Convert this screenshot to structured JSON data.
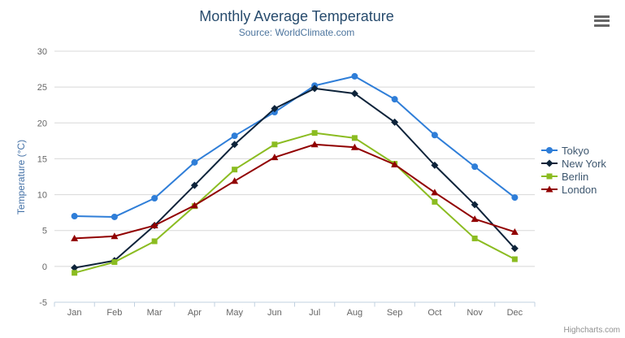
{
  "header": {
    "title": "Monthly Average Temperature",
    "subtitle": "Source: WorldClimate.com"
  },
  "credits": "Highcharts.com",
  "chart_data": {
    "type": "line",
    "title": "Monthly Average Temperature",
    "subtitle": "Source: WorldClimate.com",
    "xlabel": "",
    "ylabel": "Temperature (°C)",
    "categories": [
      "Jan",
      "Feb",
      "Mar",
      "Apr",
      "May",
      "Jun",
      "Jul",
      "Aug",
      "Sep",
      "Oct",
      "Nov",
      "Dec"
    ],
    "ylim": [
      -5,
      30
    ],
    "ytick_step": 5,
    "grid": true,
    "legend_position": "right",
    "series": [
      {
        "name": "Tokyo",
        "color": "#2f7ed8",
        "marker": "circle",
        "values": [
          7.0,
          6.9,
          9.5,
          14.5,
          18.2,
          21.5,
          25.2,
          26.5,
          23.3,
          18.3,
          13.9,
          9.6
        ]
      },
      {
        "name": "New York",
        "color": "#0d233a",
        "marker": "diamond",
        "values": [
          -0.2,
          0.8,
          5.7,
          11.3,
          17.0,
          22.0,
          24.8,
          24.1,
          20.1,
          14.1,
          8.6,
          2.5
        ]
      },
      {
        "name": "Berlin",
        "color": "#8bbc21",
        "marker": "square",
        "values": [
          -0.9,
          0.6,
          3.5,
          8.4,
          13.5,
          17.0,
          18.6,
          17.9,
          14.3,
          9.0,
          3.9,
          1.0
        ]
      },
      {
        "name": "London",
        "color": "#910000",
        "marker": "triangle",
        "values": [
          3.9,
          4.2,
          5.7,
          8.5,
          11.9,
          15.2,
          17.0,
          16.6,
          14.2,
          10.3,
          6.6,
          4.8
        ]
      }
    ]
  },
  "colors": {
    "title": "#274b6d",
    "subtitle": "#4d759e",
    "axis_labels": "#666666",
    "axis_title": "#4572a7",
    "grid_line": "#d8d8d8",
    "axis_line": "#c0d0e0",
    "legend_text": "#3e576f",
    "credits_text": "#909090"
  }
}
